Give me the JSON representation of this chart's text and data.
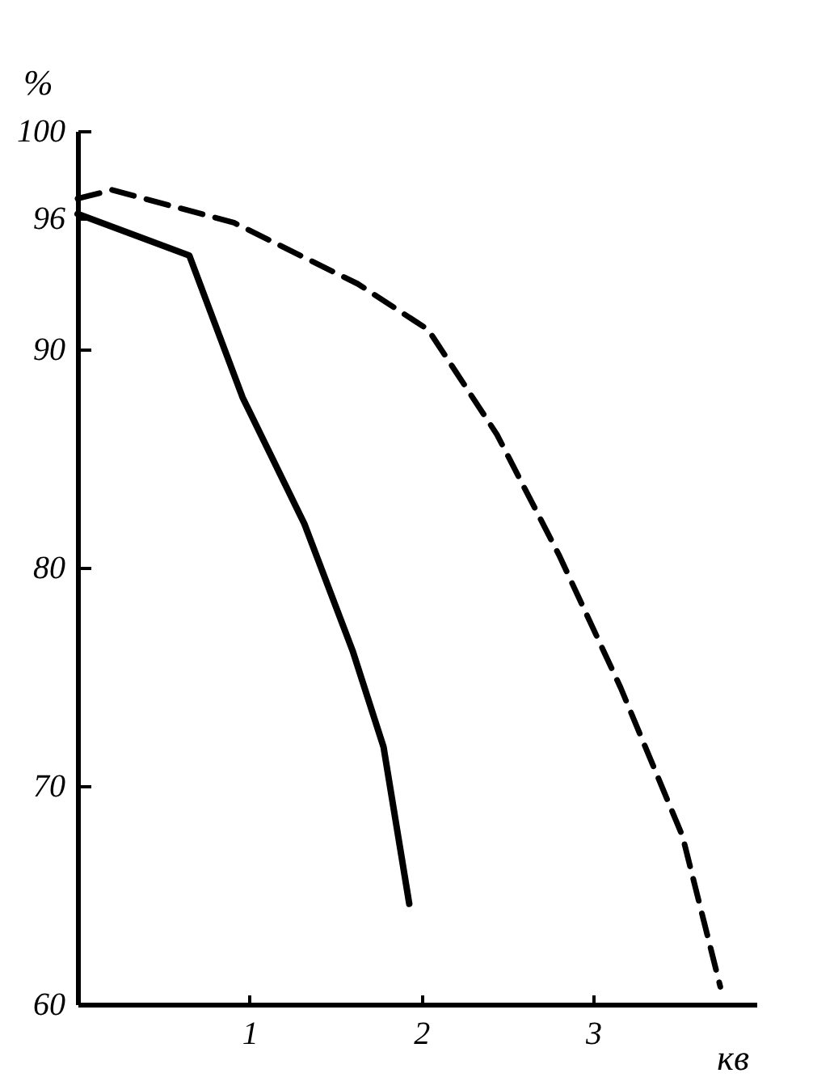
{
  "chart_data": {
    "type": "line",
    "ylabel": "%",
    "xlabel": "кв",
    "xlim": [
      0,
      3.95
    ],
    "ylim": [
      60,
      100
    ],
    "xticks": [
      1,
      2,
      3
    ],
    "yticks": [
      60,
      70,
      80,
      90,
      96,
      100
    ],
    "grid": false,
    "series": [
      {
        "color": "#000000",
        "line_style": "solid",
        "x": [
          0,
          0.65,
          0.96,
          1.32,
          1.6,
          1.78,
          1.93
        ],
        "values": [
          96.2,
          94.3,
          87.8,
          82,
          76.2,
          71.8,
          64.6
        ]
      },
      {
        "color": "#000000",
        "line_style": "dashed",
        "x": [
          0,
          0.2,
          0.91,
          1.63,
          2.04,
          2.44,
          2.8,
          3.16,
          3.52,
          3.74
        ],
        "values": [
          96.9,
          97.3,
          95.8,
          93,
          90.9,
          86.1,
          80.6,
          74.5,
          67.7,
          60.8
        ]
      }
    ]
  }
}
